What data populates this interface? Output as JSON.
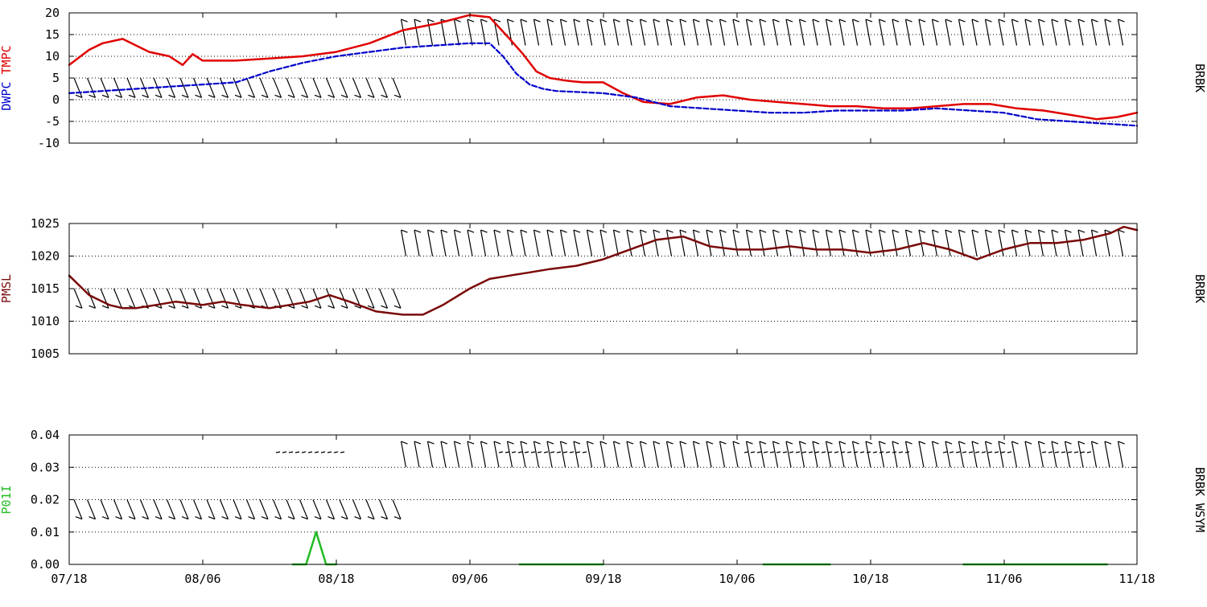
{
  "colors": {
    "tmpc": "#e00000",
    "dwpc": "#0000cc",
    "pmsl": "#7a0a0a",
    "p01i": "#22bb22",
    "frame": "#000000",
    "grid": "#000000",
    "barb": "#000000"
  },
  "x_axis": {
    "tick_labels": [
      "07/18",
      "08/06",
      "08/18",
      "09/06",
      "09/18",
      "10/06",
      "10/18",
      "11/06",
      "11/18"
    ]
  },
  "chart_data": [
    {
      "type": "line",
      "panel": "temperature",
      "ylabel_parts": [
        {
          "text": "DWPC",
          "color": "dwpc"
        },
        {
          "text": "TMPC",
          "color": "tmpc"
        }
      ],
      "station_label": "BRBK",
      "ylim": [
        -10,
        20
      ],
      "yticks": [
        -10,
        -5,
        0,
        5,
        10,
        15,
        20
      ],
      "ytick_labels": [
        "-10",
        "-5",
        "0",
        "5",
        "10",
        "15",
        "20"
      ],
      "grid": "dotted",
      "xlim": [
        0,
        16
      ],
      "series": [
        {
          "key": "tmpc",
          "color": "tmpc",
          "style": "solid",
          "x": [
            0,
            0.3,
            0.5,
            0.8,
            1.0,
            1.2,
            1.5,
            1.7,
            1.85,
            2.0,
            2.2,
            2.5,
            3.0,
            3.5,
            4.0,
            4.5,
            5.0,
            5.5,
            6.0,
            6.3,
            6.6,
            6.8,
            7.0,
            7.2,
            7.4,
            7.55,
            7.7,
            7.85,
            8.0,
            8.3,
            8.6,
            9.0,
            9.4,
            9.8,
            10.2,
            10.6,
            11.0,
            11.4,
            11.8,
            12.2,
            12.6,
            13.0,
            13.4,
            13.8,
            14.2,
            14.6,
            15.0,
            15.4,
            15.7,
            16.0
          ],
          "y": [
            8,
            11.5,
            13,
            14,
            12.5,
            11,
            10,
            8,
            10.5,
            9,
            9,
            9,
            9.5,
            10,
            11,
            13,
            16,
            17.5,
            19.5,
            19,
            14,
            10.5,
            6.5,
            5,
            4.5,
            4.2,
            4,
            4,
            4,
            1.5,
            -0.5,
            -1,
            0.5,
            1,
            0,
            -0.5,
            -1,
            -1.5,
            -1.5,
            -2,
            -2,
            -1.5,
            -1,
            -1,
            -2,
            -2.5,
            -3.5,
            -4.5,
            -4,
            -3
          ]
        },
        {
          "key": "dwpc",
          "color": "dwpc",
          "style": "dashed",
          "x": [
            0,
            0.5,
            1.0,
            1.5,
            2.0,
            2.5,
            3.0,
            3.5,
            4.0,
            4.5,
            5.0,
            5.5,
            6.0,
            6.3,
            6.5,
            6.7,
            6.9,
            7.1,
            7.3,
            8.0,
            8.5,
            9.0,
            9.5,
            10.0,
            10.5,
            11.0,
            11.5,
            12.0,
            12.5,
            13.0,
            13.5,
            14.0,
            14.5,
            15.0,
            15.5,
            16.0
          ],
          "y": [
            1.5,
            2,
            2.5,
            3,
            3.5,
            4,
            6.5,
            8.5,
            10,
            11,
            12,
            12.5,
            13,
            13,
            10,
            6,
            3.5,
            2.5,
            2,
            1.5,
            0.5,
            -1.5,
            -2,
            -2.5,
            -3,
            -3,
            -2.5,
            -2.5,
            -2.5,
            -2,
            -2.5,
            -3,
            -4.5,
            -5,
            -5.5,
            -6
          ]
        }
      ]
    },
    {
      "type": "line",
      "panel": "pressure",
      "ylabel_parts": [
        {
          "text": "PMSL",
          "color": "pmsl"
        }
      ],
      "station_label": "BRBK",
      "ylim": [
        1005,
        1025
      ],
      "yticks": [
        1005,
        1010,
        1015,
        1020,
        1025
      ],
      "ytick_labels": [
        "1005",
        "1010",
        "1015",
        "1020",
        "1025"
      ],
      "grid": "dotted",
      "xlim": [
        0,
        16
      ],
      "series": [
        {
          "key": "pmsl",
          "color": "pmsl",
          "style": "solid",
          "x": [
            0,
            0.3,
            0.6,
            0.8,
            1.0,
            1.3,
            1.6,
            2.0,
            2.3,
            2.6,
            3.0,
            3.3,
            3.6,
            3.9,
            4.2,
            4.6,
            5.0,
            5.3,
            5.6,
            6.0,
            6.3,
            6.6,
            6.9,
            7.2,
            7.6,
            8.0,
            8.4,
            8.8,
            9.2,
            9.6,
            10.0,
            10.4,
            10.8,
            11.2,
            11.6,
            12.0,
            12.4,
            12.8,
            13.2,
            13.6,
            14.0,
            14.4,
            14.8,
            15.2,
            15.6,
            15.8,
            16.0
          ],
          "y": [
            1017,
            1014,
            1012.5,
            1012,
            1012,
            1012.5,
            1013,
            1012.5,
            1013,
            1012.5,
            1012,
            1012.5,
            1013,
            1014,
            1013,
            1011.5,
            1011,
            1011,
            1012.5,
            1015,
            1016.5,
            1017,
            1017.5,
            1018,
            1018.5,
            1019.5,
            1021,
            1022.5,
            1023,
            1021.5,
            1021,
            1021,
            1021.5,
            1021,
            1021,
            1020.5,
            1021,
            1022,
            1021,
            1019.5,
            1021,
            1022,
            1022,
            1022.5,
            1023.5,
            1024.5,
            1024
          ]
        }
      ]
    },
    {
      "type": "line",
      "panel": "precipitation",
      "ylabel_parts": [
        {
          "text": "P01I",
          "color": "p01i"
        }
      ],
      "station_label": "BRBK WSYM",
      "ylim": [
        0,
        0.04
      ],
      "yticks": [
        0,
        0.01,
        0.02,
        0.03,
        0.04
      ],
      "ytick_labels": [
        "0.00",
        "0.01",
        "0.02",
        "0.03",
        "0.04"
      ],
      "grid": "dotted",
      "xlim": [
        0,
        16
      ],
      "series": [
        {
          "key": "p01i_1",
          "color": "p01i",
          "style": "solid",
          "x": [
            3.35,
            3.55,
            3.7,
            3.85,
            4.0
          ],
          "y": [
            0,
            0,
            0.01,
            0,
            0
          ]
        },
        {
          "key": "p01i_2",
          "color": "p01i",
          "style": "solid",
          "x": [
            6.75,
            8.0
          ],
          "y": [
            0,
            0
          ]
        },
        {
          "key": "p01i_3",
          "color": "p01i",
          "style": "solid",
          "x": [
            10.4,
            11.4
          ],
          "y": [
            0,
            0
          ]
        },
        {
          "key": "p01i_4",
          "color": "p01i",
          "style": "solid",
          "x": [
            13.4,
            15.55
          ],
          "y": [
            0,
            0
          ]
        }
      ]
    }
  ]
}
